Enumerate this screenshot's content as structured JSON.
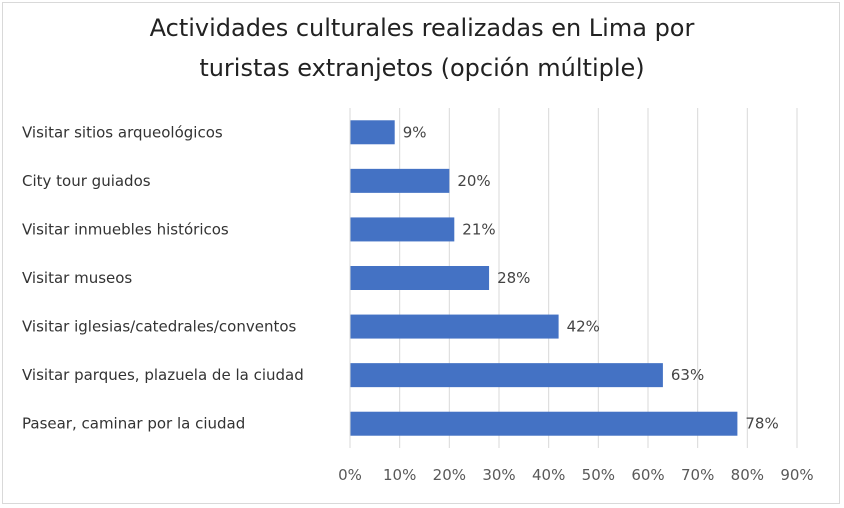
{
  "chart_data": {
    "type": "bar",
    "orientation": "horizontal",
    "title_lines": [
      "Actividades culturales realizadas en Lima por",
      "turistas extranjetos (opción múltiple)"
    ],
    "categories": [
      "Visitar sitios arqueológicos",
      "City tour guiados",
      "Visitar inmuebles históricos",
      "Visitar museos",
      "Visitar iglesias/catedrales/conventos",
      "Visitar parques, plazuela de la ciudad",
      "Pasear, caminar por la ciudad"
    ],
    "values": [
      9,
      20,
      21,
      28,
      42,
      63,
      78
    ],
    "data_labels": [
      "9%",
      "20%",
      "21%",
      "28%",
      "42%",
      "63%",
      "78%"
    ],
    "xlim": [
      0,
      90
    ],
    "x_ticks": [
      "0%",
      "10%",
      "20%",
      "30%",
      "40%",
      "50%",
      "60%",
      "70%",
      "80%",
      "90%"
    ],
    "grid": "vertical",
    "bar_color": "#4472C4"
  }
}
